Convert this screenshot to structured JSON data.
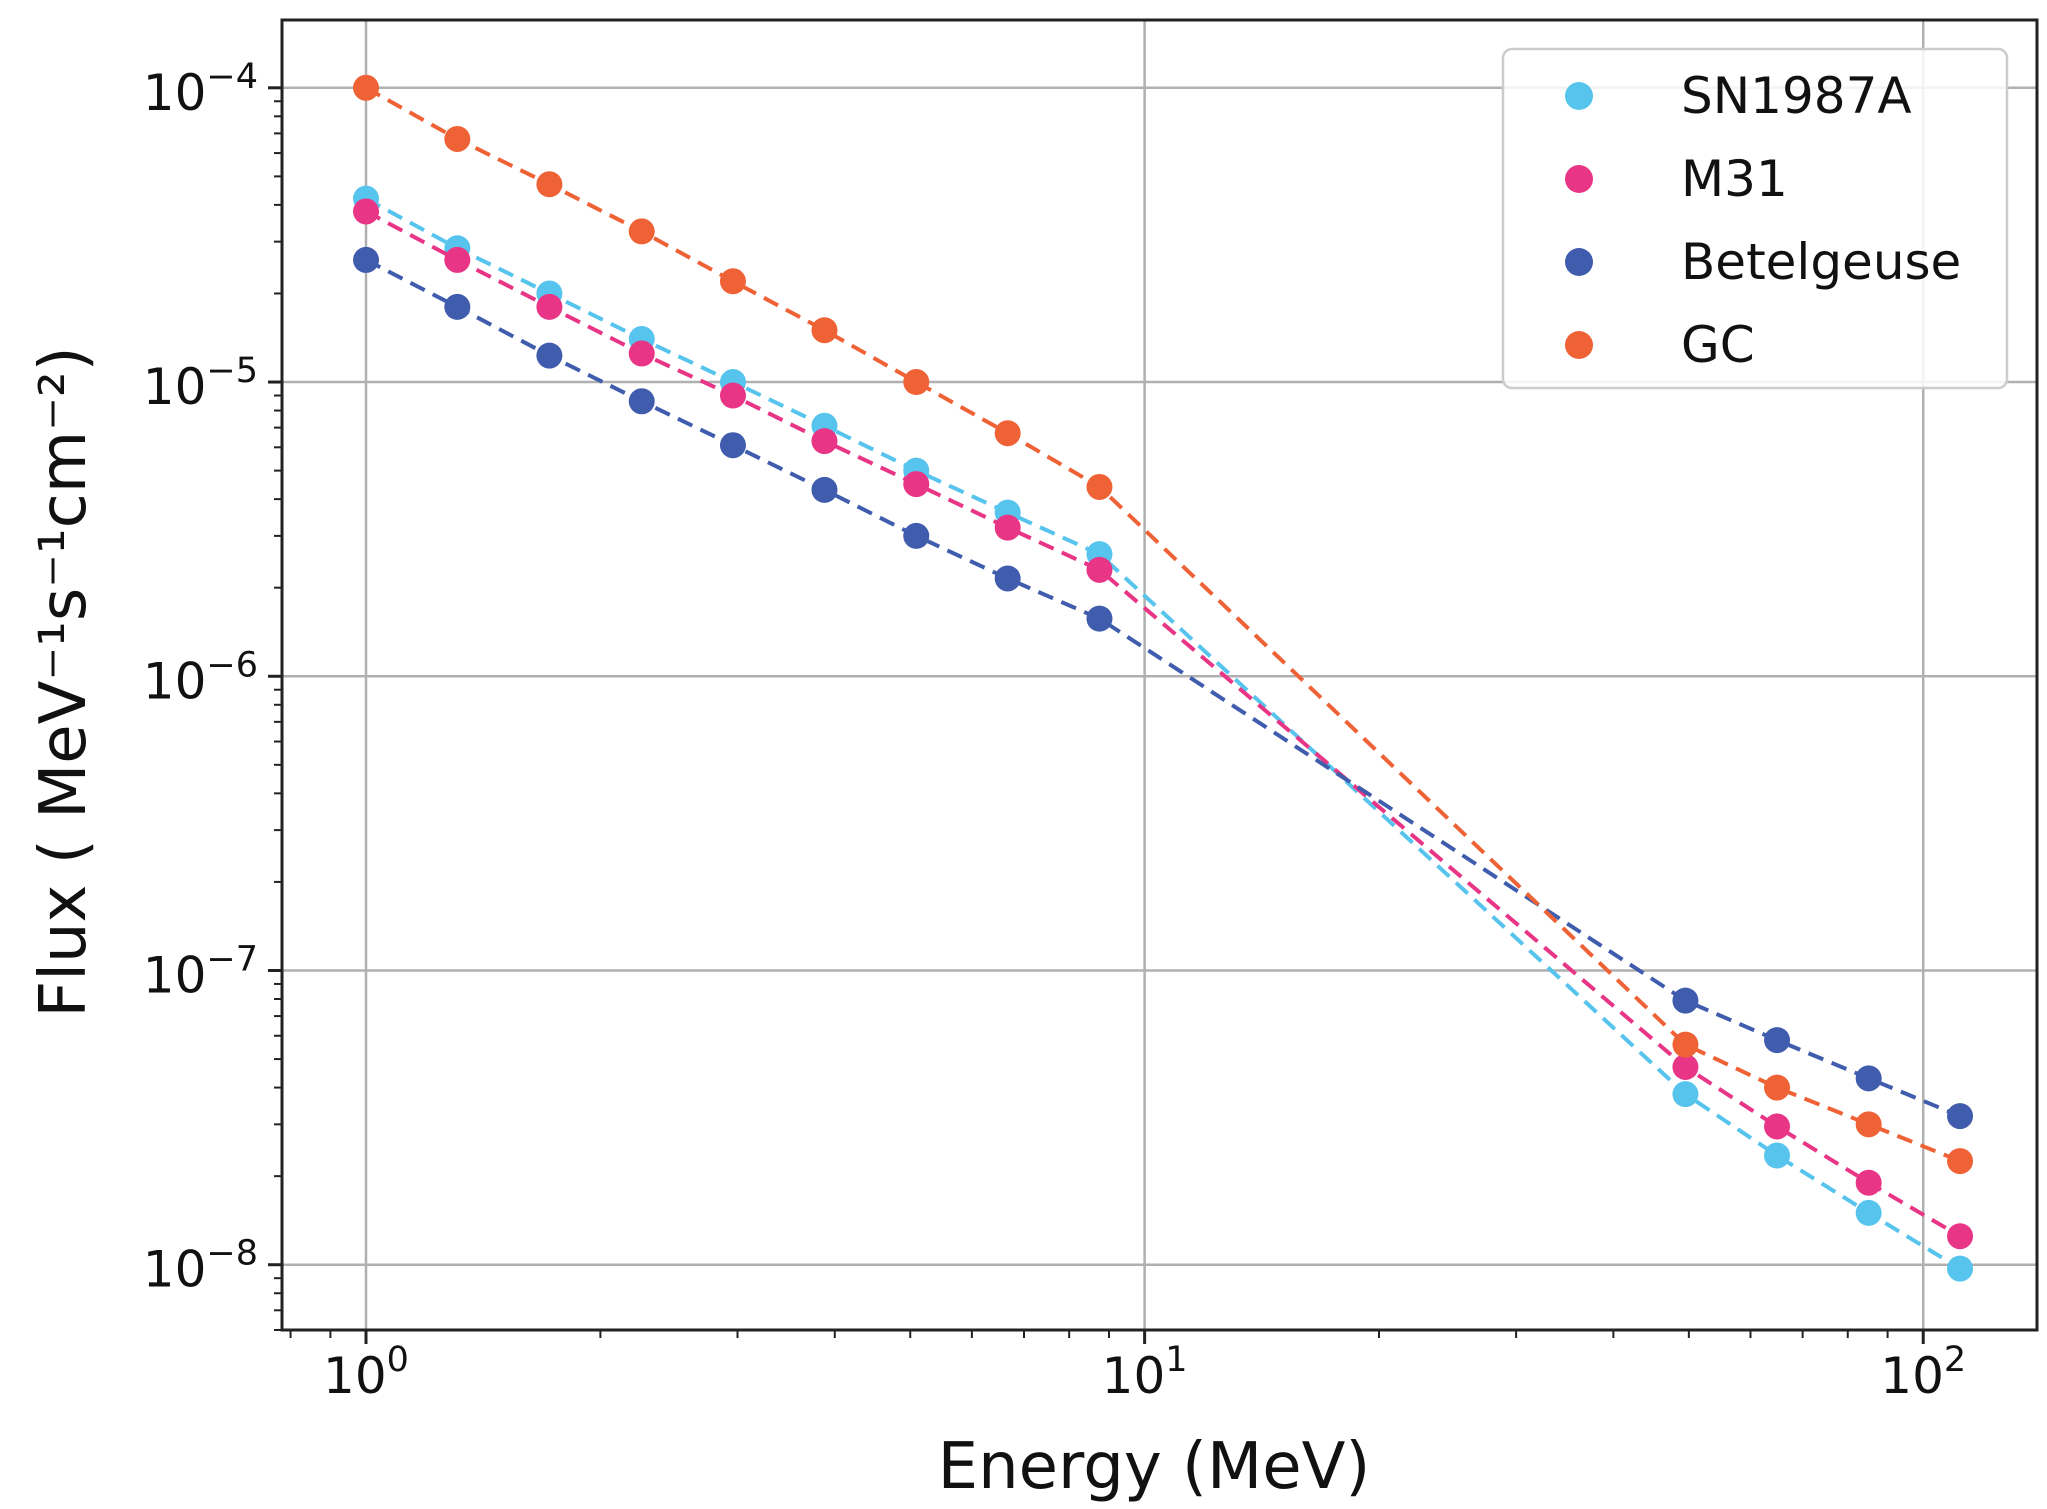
{
  "chart_data": {
    "type": "scatter",
    "x_scale": "log",
    "y_scale": "log",
    "xlabel": "Energy (MeV)",
    "ylabel": "Flux ( MeV⁻¹s⁻¹cm⁻²)",
    "xlim": [
      0.78,
      140
    ],
    "ylim": [
      6e-09,
      0.00017
    ],
    "grid": true,
    "legend_position": "top-right",
    "x_ticks": [
      {
        "value": 1,
        "base": "10",
        "exp": "0"
      },
      {
        "value": 10,
        "base": "10",
        "exp": "1"
      },
      {
        "value": 100,
        "base": "10",
        "exp": "2"
      }
    ],
    "y_ticks": [
      {
        "value": 0.0001,
        "base": "10",
        "exp": "−4"
      },
      {
        "value": 1e-05,
        "base": "10",
        "exp": "−5"
      },
      {
        "value": 1e-06,
        "base": "10",
        "exp": "−6"
      },
      {
        "value": 1e-07,
        "base": "10",
        "exp": "−7"
      },
      {
        "value": 1e-08,
        "base": "10",
        "exp": "−8"
      }
    ],
    "x": [
      1.0,
      1.31,
      1.72,
      2.26,
      2.96,
      3.88,
      5.09,
      6.67,
      8.75,
      49.5,
      64.9,
      85.1,
      111.5
    ],
    "series": [
      {
        "name": "SN1987A",
        "color": "#57c4ed",
        "values": [
          4.2e-05,
          2.85e-05,
          2e-05,
          1.4e-05,
          1e-05,
          7.1e-06,
          5e-06,
          3.6e-06,
          2.6e-06,
          3.8e-08,
          2.35e-08,
          1.5e-08,
          9.7e-09
        ]
      },
      {
        "name": "M31",
        "color": "#e83585",
        "values": [
          3.8e-05,
          2.6e-05,
          1.8e-05,
          1.25e-05,
          9e-06,
          6.3e-06,
          4.5e-06,
          3.2e-06,
          2.3e-06,
          4.7e-08,
          2.95e-08,
          1.9e-08,
          1.25e-08
        ]
      },
      {
        "name": "Betelgeuse",
        "color": "#3f5cad",
        "values": [
          2.6e-05,
          1.8e-05,
          1.23e-05,
          8.6e-06,
          6.1e-06,
          4.3e-06,
          3e-06,
          2.15e-06,
          1.57e-06,
          7.9e-08,
          5.8e-08,
          4.3e-08,
          3.2e-08
        ]
      },
      {
        "name": "GC",
        "color": "#ef6236",
        "values": [
          0.0001,
          6.7e-05,
          4.7e-05,
          3.25e-05,
          2.2e-05,
          1.5e-05,
          1e-05,
          6.7e-06,
          4.4e-06,
          5.6e-08,
          4e-08,
          3e-08,
          2.25e-08
        ]
      }
    ]
  }
}
